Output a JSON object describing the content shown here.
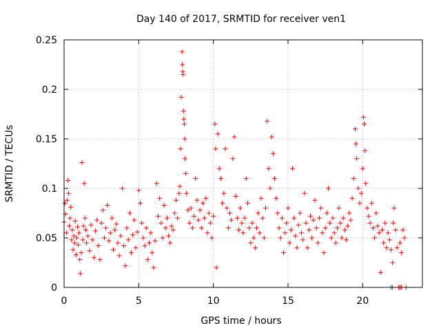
{
  "chart_data": {
    "type": "scatter",
    "title": "Day 140 of 2017, SRMTID for receiver ven1",
    "xlabel": "GPS time / hours",
    "ylabel": "SRMTID / TECUs",
    "xlim": [
      0,
      24
    ],
    "ylim": [
      0,
      0.25
    ],
    "xticks": [
      0,
      5,
      10,
      15,
      20
    ],
    "xtick_labels": [
      "0",
      "5",
      "10",
      "15",
      "20"
    ],
    "yticks": [
      0,
      0.05,
      0.1,
      0.15,
      0.2,
      0.25
    ],
    "ytick_labels": [
      "0",
      "0.05",
      "0.1",
      "0.15",
      "0.2",
      "0.25"
    ],
    "grid": true,
    "marker": "plus",
    "series": [
      {
        "name": "SRMTID",
        "color": "#ff0000",
        "points": [
          [
            0.0,
            0.066
          ],
          [
            0.05,
            0.085
          ],
          [
            0.1,
            0.074
          ],
          [
            0.15,
            0.055
          ],
          [
            0.2,
            0.088
          ],
          [
            0.25,
            0.108
          ],
          [
            0.3,
            0.095
          ],
          [
            0.35,
            0.062
          ],
          [
            0.4,
            0.07
          ],
          [
            0.45,
            0.081
          ],
          [
            0.5,
            0.048
          ],
          [
            0.55,
            0.058
          ],
          [
            0.6,
            0.038
          ],
          [
            0.65,
            0.052
          ],
          [
            0.7,
            0.045
          ],
          [
            0.75,
            0.067
          ],
          [
            0.8,
            0.033
          ],
          [
            0.85,
            0.05
          ],
          [
            0.9,
            0.061
          ],
          [
            0.95,
            0.043
          ],
          [
            1.0,
            0.055
          ],
          [
            1.05,
            0.028
          ],
          [
            1.1,
            0.014
          ],
          [
            1.15,
            0.035
          ],
          [
            1.2,
            0.126
          ],
          [
            1.25,
            0.048
          ],
          [
            1.3,
            0.062
          ],
          [
            1.35,
            0.105
          ],
          [
            1.4,
            0.07
          ],
          [
            1.45,
            0.058
          ],
          [
            1.5,
            0.045
          ],
          [
            1.6,
            0.052
          ],
          [
            1.7,
            0.037
          ],
          [
            1.8,
            0.063
          ],
          [
            1.9,
            0.048
          ],
          [
            2.0,
            0.03
          ],
          [
            2.1,
            0.057
          ],
          [
            2.2,
            0.068
          ],
          [
            2.3,
            0.042
          ],
          [
            2.4,
            0.028
          ],
          [
            2.5,
            0.065
          ],
          [
            2.6,
            0.078
          ],
          [
            2.7,
            0.05
          ],
          [
            2.8,
            0.06
          ],
          [
            2.9,
            0.083
          ],
          [
            3.0,
            0.047
          ],
          [
            3.1,
            0.055
          ],
          [
            3.2,
            0.07
          ],
          [
            3.3,
            0.038
          ],
          [
            3.4,
            0.058
          ],
          [
            3.5,
            0.064
          ],
          [
            3.6,
            0.045
          ],
          [
            3.7,
            0.032
          ],
          [
            3.8,
            0.052
          ],
          [
            3.9,
            0.1
          ],
          [
            4.0,
            0.042
          ],
          [
            4.1,
            0.022
          ],
          [
            4.2,
            0.06
          ],
          [
            4.3,
            0.048
          ],
          [
            4.4,
            0.075
          ],
          [
            4.5,
            0.035
          ],
          [
            4.6,
            0.053
          ],
          [
            4.7,
            0.068
          ],
          [
            4.8,
            0.04
          ],
          [
            4.9,
            0.056
          ],
          [
            5.0,
            0.098
          ],
          [
            5.1,
            0.085
          ],
          [
            5.2,
            0.065
          ],
          [
            5.3,
            0.05
          ],
          [
            5.4,
            0.042
          ],
          [
            5.5,
            0.06
          ],
          [
            5.6,
            0.028
          ],
          [
            5.7,
            0.045
          ],
          [
            5.8,
            0.055
          ],
          [
            5.9,
            0.035
          ],
          [
            6.0,
            0.02
          ],
          [
            6.1,
            0.047
          ],
          [
            6.2,
            0.105
          ],
          [
            6.3,
            0.072
          ],
          [
            6.4,
            0.09
          ],
          [
            6.5,
            0.065
          ],
          [
            6.6,
            0.05
          ],
          [
            6.7,
            0.083
          ],
          [
            6.8,
            0.06
          ],
          [
            6.9,
            0.07
          ],
          [
            7.0,
            0.052
          ],
          [
            7.1,
            0.045
          ],
          [
            7.2,
            0.062
          ],
          [
            7.3,
            0.058
          ],
          [
            7.4,
            0.075
          ],
          [
            7.5,
            0.088
          ],
          [
            7.6,
            0.07
          ],
          [
            7.7,
            0.095
          ],
          [
            7.75,
            0.102
          ],
          [
            7.8,
            0.14
          ],
          [
            7.85,
            0.192
          ],
          [
            7.9,
            0.238
          ],
          [
            7.92,
            0.225
          ],
          [
            7.95,
            0.218
          ],
          [
            7.97,
            0.215
          ],
          [
            8.0,
            0.178
          ],
          [
            8.02,
            0.17
          ],
          [
            8.05,
            0.165
          ],
          [
            8.08,
            0.15
          ],
          [
            8.1,
            0.13
          ],
          [
            8.15,
            0.115
          ],
          [
            8.2,
            0.095
          ],
          [
            8.3,
            0.078
          ],
          [
            8.4,
            0.065
          ],
          [
            8.5,
            0.08
          ],
          [
            8.6,
            0.06
          ],
          [
            8.7,
            0.072
          ],
          [
            8.8,
            0.11
          ],
          [
            8.9,
            0.088
          ],
          [
            9.0,
            0.068
          ],
          [
            9.1,
            0.078
          ],
          [
            9.2,
            0.06
          ],
          [
            9.3,
            0.085
          ],
          [
            9.4,
            0.07
          ],
          [
            9.5,
            0.09
          ],
          [
            9.6,
            0.055
          ],
          [
            9.7,
            0.075
          ],
          [
            9.8,
            0.065
          ],
          [
            9.9,
            0.05
          ],
          [
            10.0,
            0.072
          ],
          [
            10.1,
            0.165
          ],
          [
            10.15,
            0.14
          ],
          [
            10.2,
            0.02
          ],
          [
            10.3,
            0.155
          ],
          [
            10.4,
            0.12
          ],
          [
            10.5,
            0.11
          ],
          [
            10.6,
            0.085
          ],
          [
            10.7,
            0.095
          ],
          [
            10.8,
            0.14
          ],
          [
            10.9,
            0.08
          ],
          [
            11.0,
            0.06
          ],
          [
            11.1,
            0.075
          ],
          [
            11.2,
            0.068
          ],
          [
            11.3,
            0.13
          ],
          [
            11.4,
            0.152
          ],
          [
            11.5,
            0.092
          ],
          [
            11.6,
            0.07
          ],
          [
            11.7,
            0.058
          ],
          [
            11.8,
            0.08
          ],
          [
            11.9,
            0.065
          ],
          [
            12.0,
            0.055
          ],
          [
            12.1,
            0.07
          ],
          [
            12.2,
            0.11
          ],
          [
            12.3,
            0.085
          ],
          [
            12.4,
            0.06
          ],
          [
            12.5,
            0.045
          ],
          [
            12.6,
            0.065
          ],
          [
            12.7,
            0.05
          ],
          [
            12.8,
            0.04
          ],
          [
            12.9,
            0.06
          ],
          [
            13.0,
            0.075
          ],
          [
            13.1,
            0.055
          ],
          [
            13.2,
            0.09
          ],
          [
            13.3,
            0.07
          ],
          [
            13.4,
            0.05
          ],
          [
            13.5,
            0.08
          ],
          [
            13.6,
            0.168
          ],
          [
            13.7,
            0.12
          ],
          [
            13.8,
            0.1
          ],
          [
            13.9,
            0.152
          ],
          [
            14.0,
            0.135
          ],
          [
            14.1,
            0.11
          ],
          [
            14.2,
            0.09
          ],
          [
            14.3,
            0.075
          ],
          [
            14.4,
            0.06
          ],
          [
            14.5,
            0.05
          ],
          [
            14.6,
            0.07
          ],
          [
            14.7,
            0.035
          ],
          [
            14.8,
            0.055
          ],
          [
            14.9,
            0.065
          ],
          [
            15.0,
            0.08
          ],
          [
            15.1,
            0.045
          ],
          [
            15.2,
            0.058
          ],
          [
            15.3,
            0.12
          ],
          [
            15.4,
            0.07
          ],
          [
            15.5,
            0.052
          ],
          [
            15.6,
            0.04
          ],
          [
            15.7,
            0.063
          ],
          [
            15.8,
            0.075
          ],
          [
            15.9,
            0.055
          ],
          [
            16.0,
            0.048
          ],
          [
            16.1,
            0.095
          ],
          [
            16.2,
            0.065
          ],
          [
            16.3,
            0.04
          ],
          [
            16.4,
            0.058
          ],
          [
            16.5,
            0.072
          ],
          [
            16.6,
            0.05
          ],
          [
            16.7,
            0.068
          ],
          [
            16.8,
            0.088
          ],
          [
            16.9,
            0.06
          ],
          [
            17.0,
            0.045
          ],
          [
            17.1,
            0.07
          ],
          [
            17.2,
            0.08
          ],
          [
            17.3,
            0.055
          ],
          [
            17.4,
            0.035
          ],
          [
            17.5,
            0.06
          ],
          [
            17.6,
            0.075
          ],
          [
            17.7,
            0.1
          ],
          [
            17.8,
            0.065
          ],
          [
            17.9,
            0.05
          ],
          [
            18.0,
            0.07
          ],
          [
            18.1,
            0.055
          ],
          [
            18.2,
            0.045
          ],
          [
            18.3,
            0.06
          ],
          [
            18.4,
            0.08
          ],
          [
            18.5,
            0.065
          ],
          [
            18.6,
            0.05
          ],
          [
            18.7,
            0.07
          ],
          [
            18.8,
            0.058
          ],
          [
            18.9,
            0.048
          ],
          [
            19.0,
            0.062
          ],
          [
            19.1,
            0.075
          ],
          [
            19.2,
            0.068
          ],
          [
            19.3,
            0.09
          ],
          [
            19.4,
            0.11
          ],
          [
            19.5,
            0.16
          ],
          [
            19.55,
            0.145
          ],
          [
            19.6,
            0.13
          ],
          [
            19.7,
            0.1
          ],
          [
            19.8,
            0.085
          ],
          [
            19.9,
            0.095
          ],
          [
            20.0,
            0.12
          ],
          [
            20.05,
            0.172
          ],
          [
            20.1,
            0.165
          ],
          [
            20.15,
            0.138
          ],
          [
            20.2,
            0.105
          ],
          [
            20.3,
            0.08
          ],
          [
            20.4,
            0.072
          ],
          [
            20.5,
            0.065
          ],
          [
            20.6,
            0.085
          ],
          [
            20.7,
            0.06
          ],
          [
            20.8,
            0.05
          ],
          [
            20.9,
            0.075
          ],
          [
            21.0,
            0.062
          ],
          [
            21.1,
            0.055
          ],
          [
            21.2,
            0.015
          ],
          [
            21.3,
            0.058
          ],
          [
            21.4,
            0.045
          ],
          [
            21.5,
            0.065
          ],
          [
            21.6,
            0.04
          ],
          [
            21.7,
            0.055
          ],
          [
            21.8,
            0.048
          ],
          [
            21.9,
            0.038
          ],
          [
            22.0,
            0.025
          ],
          [
            22.05,
            0.065
          ],
          [
            22.1,
            0.08
          ],
          [
            22.2,
            0.058
          ],
          [
            22.3,
            0.04
          ],
          [
            22.5,
            0.045
          ],
          [
            22.6,
            0.035
          ],
          [
            22.7,
            0.058
          ],
          [
            22.8,
            0.05
          ],
          [
            21.9,
            0.0
          ],
          [
            22.0,
            0.0
          ],
          [
            22.4,
            0.0
          ],
          [
            22.5,
            0.0
          ],
          [
            22.6,
            0.0
          ],
          [
            22.9,
            0.0
          ]
        ]
      }
    ]
  }
}
